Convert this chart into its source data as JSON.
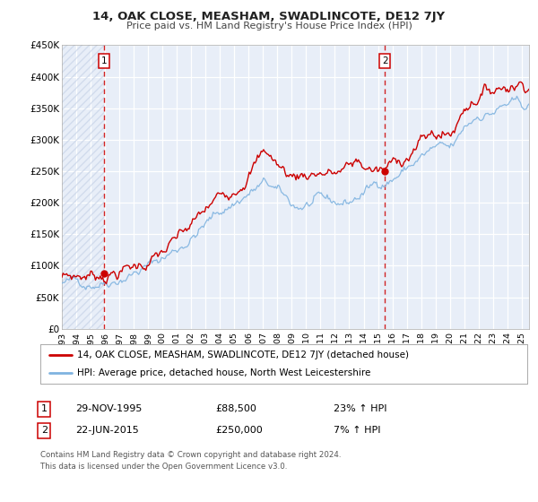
{
  "title": "14, OAK CLOSE, MEASHAM, SWADLINCOTE, DE12 7JY",
  "subtitle": "Price paid vs. HM Land Registry's House Price Index (HPI)",
  "xlim": [
    1993.0,
    2025.5
  ],
  "ylim": [
    0,
    450000
  ],
  "yticks": [
    0,
    50000,
    100000,
    150000,
    200000,
    250000,
    300000,
    350000,
    400000,
    450000
  ],
  "ytick_labels": [
    "£0",
    "£50K",
    "£100K",
    "£150K",
    "£200K",
    "£250K",
    "£300K",
    "£350K",
    "£400K",
    "£450K"
  ],
  "xticks": [
    1993,
    1994,
    1995,
    1996,
    1997,
    1998,
    1999,
    2000,
    2001,
    2002,
    2003,
    2004,
    2005,
    2006,
    2007,
    2008,
    2009,
    2010,
    2011,
    2012,
    2013,
    2014,
    2015,
    2016,
    2017,
    2018,
    2019,
    2020,
    2021,
    2022,
    2023,
    2024,
    2025
  ],
  "hpi_color": "#7fb3e0",
  "price_color": "#cc0000",
  "marker1_x": 1995.92,
  "marker1_y": 88500,
  "marker2_x": 2015.47,
  "marker2_y": 250000,
  "vline1_x": 1995.92,
  "vline2_x": 2015.47,
  "legend_label1": "14, OAK CLOSE, MEASHAM, SWADLINCOTE, DE12 7JY (detached house)",
  "legend_label2": "HPI: Average price, detached house, North West Leicestershire",
  "table_row1": [
    "1",
    "29-NOV-1995",
    "£88,500",
    "23% ↑ HPI"
  ],
  "table_row2": [
    "2",
    "22-JUN-2015",
    "£250,000",
    "7% ↑ HPI"
  ],
  "footnote1": "Contains HM Land Registry data © Crown copyright and database right 2024.",
  "footnote2": "This data is licensed under the Open Government Licence v3.0.",
  "plot_bg_color": "#e8eef8",
  "fig_bg_color": "#ffffff",
  "hatch_color": "#c8d4e8",
  "grid_color": "#ffffff"
}
